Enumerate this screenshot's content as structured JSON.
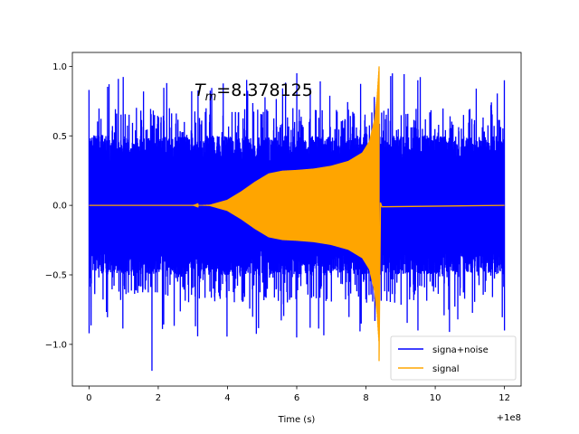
{
  "chart_data": {
    "type": "line",
    "title": "",
    "xlabel": "Time (s)",
    "ylabel": "",
    "x_offset_label": "+1e8",
    "xlim": [
      -0.48,
      12.48
    ],
    "ylim": [
      -1.3,
      1.1
    ],
    "x_ticks": [
      0,
      2,
      4,
      6,
      8,
      10,
      12
    ],
    "x_tick_labels": [
      "0",
      "2",
      "4",
      "6",
      "8",
      "10",
      "12"
    ],
    "y_ticks": [
      -1.0,
      -0.5,
      0.0,
      0.5,
      1.0
    ],
    "y_tick_labels": [
      "−1.0",
      "−0.5",
      "0.0",
      "0.5",
      "1.0"
    ],
    "grid": false,
    "legend_position": "lower-right",
    "annotation": {
      "prefix": "T",
      "subscript": "m",
      "value_text": "=8.378125",
      "x": 3.0,
      "y": 0.8
    },
    "series": [
      {
        "name": "signa+noise",
        "color": "#0000ff",
        "x_range": [
          0,
          12
        ],
        "noise_band_typical": [
          -0.5,
          0.5
        ],
        "noise_peak_max": 0.95,
        "noise_peak_min": -1.19,
        "min_at_x": 1.82,
        "points_sampled": [
          [
            0.0,
            0.83
          ],
          [
            0.0,
            -0.92
          ],
          [
            1.82,
            -1.19
          ],
          [
            6.0,
            0.95
          ],
          [
            6.0,
            -0.95
          ],
          [
            9.5,
            0.9
          ],
          [
            9.5,
            -0.9
          ],
          [
            12.0,
            0.9
          ],
          [
            12.0,
            -0.9
          ]
        ]
      },
      {
        "name": "signal",
        "color": "#ffa500",
        "envelope": [
          [
            0.0,
            0.0
          ],
          [
            3.0,
            0.0
          ],
          [
            3.5,
            0.005
          ],
          [
            4.0,
            0.04
          ],
          [
            4.4,
            0.1
          ],
          [
            4.8,
            0.17
          ],
          [
            5.2,
            0.23
          ],
          [
            5.6,
            0.25
          ],
          [
            6.0,
            0.255
          ],
          [
            6.5,
            0.265
          ],
          [
            7.0,
            0.285
          ],
          [
            7.5,
            0.32
          ],
          [
            7.9,
            0.38
          ],
          [
            8.1,
            0.46
          ],
          [
            8.25,
            0.62
          ],
          [
            8.32,
            0.78
          ],
          [
            8.378,
            1.0
          ]
        ],
        "merger_time": 8.378125,
        "merger_max": 1.0,
        "merger_min": -1.12,
        "post_merger": 0.0,
        "x_end": 12.0
      }
    ]
  }
}
